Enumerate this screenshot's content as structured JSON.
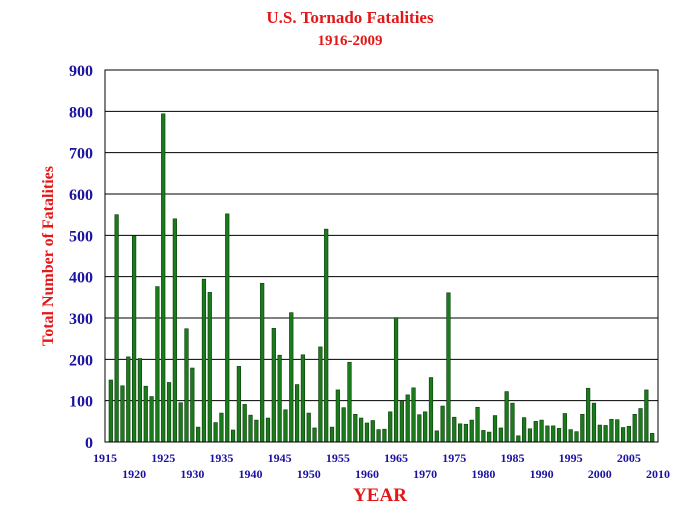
{
  "chart_data": {
    "type": "bar",
    "title": "U.S. Tornado Fatalities",
    "subtitle": "1916-2009",
    "xlabel": "YEAR",
    "ylabel": "Total Number of Fatalities",
    "ylim": [
      0,
      900
    ],
    "yticks": [
      0,
      100,
      200,
      300,
      400,
      500,
      600,
      700,
      800,
      900
    ],
    "xticks_top": [
      "1915",
      "1925",
      "1935",
      "1945",
      "1955",
      "1965",
      "1975",
      "1985",
      "1995",
      "2005"
    ],
    "xticks_bottom": [
      "1920",
      "1930",
      "1940",
      "1950",
      "1960",
      "1970",
      "1980",
      "1990",
      "2000",
      "2010"
    ],
    "xlim": [
      1915,
      2010
    ],
    "grid": true,
    "colors": {
      "bar": "#1b7a1b",
      "text_red": "#e21818",
      "text_blue": "#1a12a0"
    },
    "x": [
      1916,
      1917,
      1918,
      1919,
      1920,
      1921,
      1922,
      1923,
      1924,
      1925,
      1926,
      1927,
      1928,
      1929,
      1930,
      1931,
      1932,
      1933,
      1934,
      1935,
      1936,
      1937,
      1938,
      1939,
      1940,
      1941,
      1942,
      1943,
      1944,
      1945,
      1946,
      1947,
      1948,
      1949,
      1950,
      1951,
      1952,
      1953,
      1954,
      1955,
      1956,
      1957,
      1958,
      1959,
      1960,
      1961,
      1962,
      1963,
      1964,
      1965,
      1966,
      1967,
      1968,
      1969,
      1970,
      1971,
      1972,
      1973,
      1974,
      1975,
      1976,
      1977,
      1978,
      1979,
      1980,
      1981,
      1982,
      1983,
      1984,
      1985,
      1986,
      1987,
      1988,
      1989,
      1990,
      1991,
      1992,
      1993,
      1994,
      1995,
      1996,
      1997,
      1998,
      1999,
      2000,
      2001,
      2002,
      2003,
      2004,
      2005,
      2006,
      2007,
      2008,
      2009
    ],
    "values": [
      150,
      550,
      136,
      206,
      499,
      202,
      135,
      110,
      376,
      794,
      144,
      540,
      95,
      274,
      179,
      36,
      394,
      362,
      47,
      70,
      552,
      29,
      183,
      91,
      65,
      53,
      384,
      58,
      275,
      210,
      78,
      313,
      139,
      211,
      70,
      34,
      230,
      515,
      36,
      126,
      83,
      193,
      67,
      58,
      46,
      52,
      30,
      31,
      73,
      301,
      98,
      114,
      131,
      66,
      73,
      156,
      27,
      87,
      361,
      60,
      44,
      43,
      53,
      84,
      28,
      24,
      64,
      34,
      122,
      94,
      15,
      59,
      32,
      50,
      53,
      39,
      39,
      33,
      69,
      30,
      25,
      67,
      130,
      94,
      41,
      40,
      55,
      54,
      35,
      38,
      67,
      81,
      126,
      21
    ]
  }
}
